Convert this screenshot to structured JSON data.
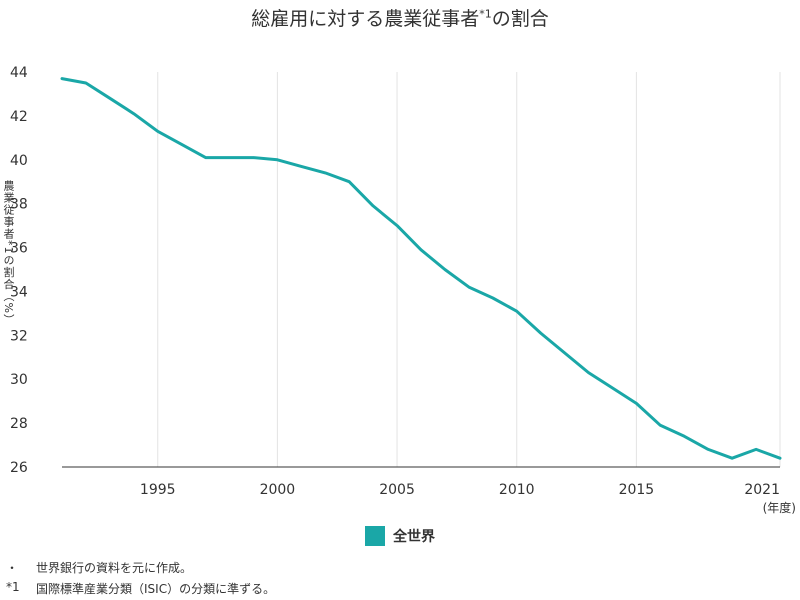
{
  "title": {
    "main": "総雇用に対する農業従事者",
    "sup": "*1",
    "tail": "の割合"
  },
  "chart_data": {
    "type": "line",
    "title": "総雇用に対する農業従事者*1の割合",
    "ylabel": "農業従事者*1の割合（%）",
    "xlabel": "",
    "x_unit_label": "(年度)",
    "ylim": [
      26,
      44
    ],
    "xlim": [
      1991,
      2021
    ],
    "y_ticks": [
      26,
      28,
      30,
      32,
      34,
      36,
      38,
      40,
      42,
      44
    ],
    "x_ticks": [
      1995,
      2000,
      2005,
      2010,
      2015,
      2021
    ],
    "grid": "vertical",
    "legend_position": "bottom-center",
    "series": [
      {
        "name": "全世界",
        "color": "#1aa7a7",
        "x": [
          1991,
          1992,
          1993,
          1994,
          1995,
          1996,
          1997,
          1998,
          1999,
          2000,
          2001,
          2002,
          2003,
          2004,
          2005,
          2006,
          2007,
          2008,
          2009,
          2010,
          2011,
          2012,
          2013,
          2014,
          2015,
          2016,
          2017,
          2018,
          2019,
          2020,
          2021
        ],
        "y": [
          43.7,
          43.5,
          42.8,
          42.1,
          41.3,
          40.7,
          40.1,
          40.1,
          40.1,
          40.0,
          39.7,
          39.4,
          39.0,
          37.9,
          37.0,
          35.9,
          35.0,
          34.2,
          33.7,
          33.1,
          32.1,
          31.2,
          30.3,
          29.6,
          28.9,
          27.9,
          27.4,
          26.8,
          26.4,
          26.8,
          26.4
        ]
      }
    ]
  },
  "legend": {
    "label": "全世界",
    "color": "#1aa7a7"
  },
  "notes": [
    {
      "mark": "・",
      "text": "世界銀行の資料を元に作成。"
    },
    {
      "mark": "*1",
      "text": "国際標準産業分類（ISIC）の分類に準ずる。"
    }
  ]
}
